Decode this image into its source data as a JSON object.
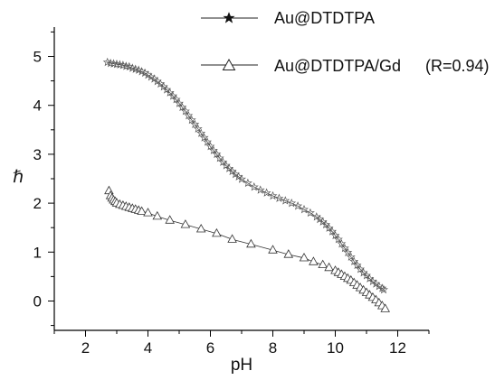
{
  "chart_data": {
    "type": "scatter",
    "xlabel": "pH",
    "ylabel": "ℏ",
    "xlim": [
      1,
      13
    ],
    "ylim": [
      -0.6,
      5.6
    ],
    "x_ticks": [
      "2",
      "4",
      "6",
      "8",
      "10",
      "12"
    ],
    "y_ticks": [
      "0",
      "1",
      "2",
      "3",
      "4",
      "5"
    ],
    "legend_position": "top",
    "series": [
      {
        "name": "Au@DTDTPA",
        "marker": "star",
        "color": "#555555",
        "points": [
          [
            2.7,
            4.88
          ],
          [
            2.8,
            4.86
          ],
          [
            2.9,
            4.85
          ],
          [
            3.0,
            4.84
          ],
          [
            3.1,
            4.83
          ],
          [
            3.2,
            4.82
          ],
          [
            3.3,
            4.8
          ],
          [
            3.4,
            4.79
          ],
          [
            3.5,
            4.76
          ],
          [
            3.6,
            4.74
          ],
          [
            3.7,
            4.72
          ],
          [
            3.8,
            4.69
          ],
          [
            3.9,
            4.66
          ],
          [
            4.0,
            4.62
          ],
          [
            4.1,
            4.58
          ],
          [
            4.2,
            4.54
          ],
          [
            4.3,
            4.49
          ],
          [
            4.4,
            4.44
          ],
          [
            4.5,
            4.38
          ],
          [
            4.6,
            4.32
          ],
          [
            4.7,
            4.26
          ],
          [
            4.8,
            4.19
          ],
          [
            4.9,
            4.12
          ],
          [
            5.0,
            4.04
          ],
          [
            5.1,
            3.96
          ],
          [
            5.2,
            3.88
          ],
          [
            5.3,
            3.79
          ],
          [
            5.4,
            3.7
          ],
          [
            5.5,
            3.61
          ],
          [
            5.6,
            3.52
          ],
          [
            5.7,
            3.43
          ],
          [
            5.8,
            3.34
          ],
          [
            5.9,
            3.25
          ],
          [
            6.0,
            3.16
          ],
          [
            6.1,
            3.08
          ],
          [
            6.2,
            3.0
          ],
          [
            6.3,
            2.92
          ],
          [
            6.4,
            2.84
          ],
          [
            6.5,
            2.77
          ],
          [
            6.6,
            2.71
          ],
          [
            6.7,
            2.65
          ],
          [
            6.8,
            2.59
          ],
          [
            6.9,
            2.54
          ],
          [
            7.0,
            2.49
          ],
          [
            7.2,
            2.41
          ],
          [
            7.4,
            2.33
          ],
          [
            7.6,
            2.27
          ],
          [
            7.8,
            2.21
          ],
          [
            8.0,
            2.15
          ],
          [
            8.2,
            2.1
          ],
          [
            8.4,
            2.05
          ],
          [
            8.6,
            2.0
          ],
          [
            8.8,
            1.94
          ],
          [
            9.0,
            1.87
          ],
          [
            9.2,
            1.8
          ],
          [
            9.4,
            1.72
          ],
          [
            9.5,
            1.67
          ],
          [
            9.6,
            1.62
          ],
          [
            9.7,
            1.56
          ],
          [
            9.8,
            1.49
          ],
          [
            9.9,
            1.42
          ],
          [
            10.0,
            1.34
          ],
          [
            10.1,
            1.26
          ],
          [
            10.2,
            1.17
          ],
          [
            10.3,
            1.08
          ],
          [
            10.4,
            0.99
          ],
          [
            10.5,
            0.9
          ],
          [
            10.6,
            0.81
          ],
          [
            10.7,
            0.73
          ],
          [
            10.8,
            0.65
          ],
          [
            10.9,
            0.58
          ],
          [
            11.0,
            0.52
          ],
          [
            11.1,
            0.46
          ],
          [
            11.2,
            0.4
          ],
          [
            11.3,
            0.35
          ],
          [
            11.4,
            0.3
          ],
          [
            11.5,
            0.26
          ],
          [
            11.55,
            0.23
          ]
        ]
      },
      {
        "name": "Au@DTDTPA/Gd",
        "legend_note": "(R=0.94)",
        "marker": "triangle",
        "color": "#333333",
        "points": [
          [
            2.75,
            2.25
          ],
          [
            2.8,
            2.15
          ],
          [
            2.85,
            2.1
          ],
          [
            2.9,
            2.06
          ],
          [
            2.95,
            2.03
          ],
          [
            3.0,
            2.0
          ],
          [
            3.1,
            1.97
          ],
          [
            3.2,
            1.95
          ],
          [
            3.3,
            1.93
          ],
          [
            3.4,
            1.91
          ],
          [
            3.5,
            1.89
          ],
          [
            3.6,
            1.87
          ],
          [
            3.7,
            1.85
          ],
          [
            3.8,
            1.83
          ],
          [
            4.0,
            1.8
          ],
          [
            4.3,
            1.73
          ],
          [
            4.7,
            1.65
          ],
          [
            5.2,
            1.56
          ],
          [
            5.7,
            1.47
          ],
          [
            6.2,
            1.38
          ],
          [
            6.7,
            1.26
          ],
          [
            7.3,
            1.16
          ],
          [
            8.0,
            1.04
          ],
          [
            8.5,
            0.95
          ],
          [
            9.0,
            0.88
          ],
          [
            9.3,
            0.8
          ],
          [
            9.6,
            0.74
          ],
          [
            9.8,
            0.68
          ],
          [
            10.0,
            0.62
          ],
          [
            10.1,
            0.58
          ],
          [
            10.2,
            0.54
          ],
          [
            10.3,
            0.5
          ],
          [
            10.4,
            0.46
          ],
          [
            10.5,
            0.42
          ],
          [
            10.6,
            0.37
          ],
          [
            10.7,
            0.32
          ],
          [
            10.8,
            0.27
          ],
          [
            10.9,
            0.22
          ],
          [
            11.0,
            0.17
          ],
          [
            11.1,
            0.12
          ],
          [
            11.2,
            0.07
          ],
          [
            11.3,
            0.02
          ],
          [
            11.4,
            -0.04
          ],
          [
            11.5,
            -0.1
          ],
          [
            11.6,
            -0.16
          ]
        ]
      }
    ]
  }
}
